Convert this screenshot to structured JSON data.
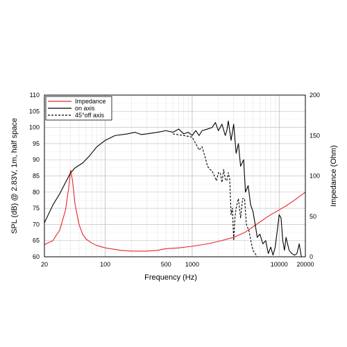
{
  "chart_data": {
    "type": "line",
    "xscale": "log",
    "grid": true,
    "legend_position": "top-left",
    "xlabel": "Frequency (Hz)",
    "ylabel_left": "SPL (dB) @ 2.83V, 1m, half space",
    "ylabel_right": "Impedance (Ohm)",
    "xlim": [
      20,
      20000
    ],
    "ylim_left": [
      60,
      110
    ],
    "ylim_right": [
      0,
      200
    ],
    "x_ticks": [
      {
        "v": 20,
        "label": "20"
      },
      {
        "v": 100,
        "label": "100"
      },
      {
        "v": 500,
        "label": "500"
      },
      {
        "v": 1000,
        "label": "1000"
      },
      {
        "v": 10000,
        "label": "10000"
      },
      {
        "v": 20000,
        "label": "20000"
      }
    ],
    "y_left_ticks": [
      "60",
      "65",
      "70",
      "75",
      "80",
      "85",
      "90",
      "95",
      "100",
      "105",
      "110"
    ],
    "y_right_ticks": [
      "0",
      "50",
      "100",
      "150",
      "200"
    ],
    "series": [
      {
        "name": "Impedance",
        "axis": "right",
        "color": "#e8252a",
        "dash": "",
        "points": [
          [
            20,
            15
          ],
          [
            25,
            20
          ],
          [
            30,
            33
          ],
          [
            35,
            58
          ],
          [
            38,
            85
          ],
          [
            40,
            107
          ],
          [
            42,
            95
          ],
          [
            45,
            65
          ],
          [
            50,
            40
          ],
          [
            55,
            28
          ],
          [
            60,
            22
          ],
          [
            70,
            17
          ],
          [
            80,
            14
          ],
          [
            100,
            11
          ],
          [
            150,
            8
          ],
          [
            200,
            7
          ],
          [
            300,
            7
          ],
          [
            400,
            8
          ],
          [
            500,
            10
          ],
          [
            700,
            11
          ],
          [
            1000,
            13
          ],
          [
            1500,
            16
          ],
          [
            2000,
            19
          ],
          [
            3000,
            24
          ],
          [
            4000,
            30
          ],
          [
            5000,
            37
          ],
          [
            6000,
            43
          ],
          [
            7000,
            48
          ],
          [
            8000,
            52
          ],
          [
            10000,
            58
          ],
          [
            12000,
            63
          ],
          [
            15000,
            70
          ],
          [
            20000,
            80
          ]
        ]
      },
      {
        "name": "on axis",
        "axis": "left",
        "color": "#000000",
        "dash": "",
        "points": [
          [
            20,
            70.5
          ],
          [
            25,
            76
          ],
          [
            30,
            79.5
          ],
          [
            35,
            83
          ],
          [
            40,
            86
          ],
          [
            45,
            87.5
          ],
          [
            55,
            89
          ],
          [
            65,
            91
          ],
          [
            80,
            94
          ],
          [
            100,
            96
          ],
          [
            130,
            97.5
          ],
          [
            180,
            98
          ],
          [
            220,
            98.5
          ],
          [
            260,
            97.8
          ],
          [
            300,
            98
          ],
          [
            400,
            98.5
          ],
          [
            500,
            99
          ],
          [
            600,
            98.5
          ],
          [
            700,
            99.5
          ],
          [
            800,
            98
          ],
          [
            900,
            98.5
          ],
          [
            1000,
            97.5
          ],
          [
            1100,
            99
          ],
          [
            1200,
            97.5
          ],
          [
            1300,
            99
          ],
          [
            1500,
            99.5
          ],
          [
            1700,
            100
          ],
          [
            1850,
            101.5
          ],
          [
            2000,
            99
          ],
          [
            2200,
            101
          ],
          [
            2400,
            97.5
          ],
          [
            2500,
            99
          ],
          [
            2600,
            102
          ],
          [
            2800,
            96
          ],
          [
            3000,
            101
          ],
          [
            3200,
            92
          ],
          [
            3400,
            95
          ],
          [
            3600,
            88
          ],
          [
            3900,
            90
          ],
          [
            4100,
            80
          ],
          [
            4400,
            82
          ],
          [
            4700,
            76
          ],
          [
            5000,
            74
          ],
          [
            5300,
            70
          ],
          [
            5600,
            66
          ],
          [
            6000,
            67
          ],
          [
            6500,
            64
          ],
          [
            7000,
            65
          ],
          [
            7500,
            61
          ],
          [
            8000,
            63
          ],
          [
            8500,
            60.5
          ],
          [
            9000,
            63
          ],
          [
            9500,
            68
          ],
          [
            10000,
            73
          ],
          [
            10500,
            72
          ],
          [
            11000,
            65
          ],
          [
            11500,
            62
          ],
          [
            12000,
            66
          ],
          [
            13000,
            62
          ],
          [
            14000,
            61
          ],
          [
            15000,
            60.5
          ],
          [
            16000,
            61
          ],
          [
            17000,
            64
          ],
          [
            18000,
            60
          ]
        ]
      },
      {
        "name": "45°off axis",
        "axis": "left",
        "color": "#000000",
        "dash": "3,2",
        "points": [
          [
            600,
            98
          ],
          [
            800,
            97.5
          ],
          [
            1000,
            97
          ],
          [
            1100,
            95
          ],
          [
            1200,
            93
          ],
          [
            1300,
            94
          ],
          [
            1400,
            91
          ],
          [
            1500,
            88
          ],
          [
            1600,
            87
          ],
          [
            1700,
            86.5
          ],
          [
            1800,
            85
          ],
          [
            1900,
            83.5
          ],
          [
            2000,
            86
          ],
          [
            2100,
            86
          ],
          [
            2200,
            83
          ],
          [
            2300,
            87
          ],
          [
            2400,
            84
          ],
          [
            2500,
            83.5
          ],
          [
            2600,
            86
          ],
          [
            2700,
            84
          ],
          [
            2800,
            73
          ],
          [
            2900,
            75
          ],
          [
            3000,
            65
          ],
          [
            3100,
            72
          ],
          [
            3200,
            75
          ],
          [
            3400,
            78
          ],
          [
            3600,
            72
          ],
          [
            3800,
            78
          ],
          [
            4000,
            78
          ],
          [
            4200,
            70
          ],
          [
            4500,
            68
          ],
          [
            4800,
            64
          ],
          [
            5000,
            62
          ],
          [
            5300,
            61
          ],
          [
            5600,
            60
          ]
        ]
      }
    ]
  }
}
